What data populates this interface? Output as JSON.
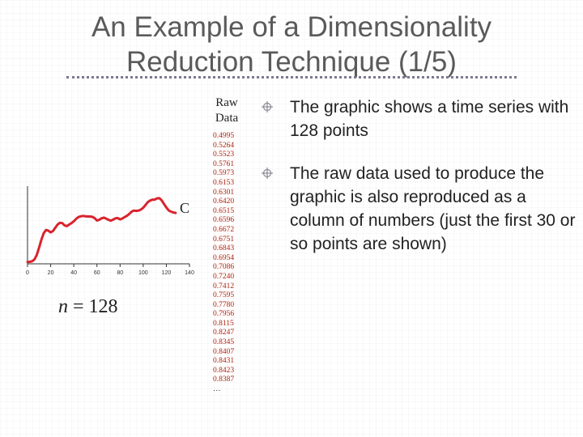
{
  "title": {
    "line1": "An Example of a Dimensionality",
    "line2": "Reduction Technique (1/5)"
  },
  "raw_data": {
    "label_line1": "Raw",
    "label_line2": "Data",
    "values": [
      "0.4995",
      "0.5264",
      "0.5523",
      "0.5761",
      "0.5973",
      "0.6153",
      "0.6301",
      "0.6420",
      "0.6515",
      "0.6596",
      "0.6672",
      "0.6751",
      "0.6843",
      "0.6954",
      "0.7086",
      "0.7240",
      "0.7412",
      "0.7595",
      "0.7780",
      "0.7956",
      "0.8115",
      "0.8247",
      "0.8345",
      "0.8407",
      "0.8431",
      "0.8423",
      "0.8387"
    ],
    "ellipsis": "…"
  },
  "chart_label": "C",
  "n_label": {
    "variable": "n",
    "value": "= 128"
  },
  "bullets": [
    {
      "text": "The graphic shows a time series with 128 points",
      "icon": "crosshair-bullet-icon"
    },
    {
      "text": "The raw data used to produce the graphic is also reproduced as a column of numbers (just the first 30 or so points are shown)",
      "icon": "crosshair-bullet-icon"
    }
  ],
  "chart_data": {
    "type": "line",
    "x_ticks": [
      0,
      20,
      40,
      60,
      80,
      100,
      120,
      140
    ],
    "xlim": [
      0,
      140
    ],
    "ylim": [
      -1.6,
      2.6
    ],
    "series": [
      {
        "color": "#d9232d",
        "x": [
          0,
          2,
          4,
          6,
          8,
          10,
          12,
          14,
          16,
          18,
          20,
          22,
          24,
          26,
          28,
          30,
          32,
          34,
          36,
          38,
          40,
          42,
          44,
          46,
          48,
          50,
          52,
          54,
          56,
          58,
          60,
          62,
          64,
          66,
          68,
          70,
          72,
          74,
          76,
          78,
          80,
          82,
          84,
          86,
          88,
          90,
          92,
          94,
          96,
          98,
          100,
          102,
          104,
          106,
          108,
          110,
          112,
          114,
          116,
          118,
          120,
          122,
          124,
          126,
          128
        ],
        "y": [
          -1.5,
          -1.49,
          -1.46,
          -1.36,
          -1.12,
          -0.72,
          -0.3,
          0.06,
          0.23,
          0.19,
          0.1,
          0.17,
          0.35,
          0.52,
          0.62,
          0.6,
          0.48,
          0.44,
          0.52,
          0.6,
          0.7,
          0.83,
          0.93,
          0.97,
          0.99,
          0.97,
          0.96,
          0.96,
          0.94,
          0.87,
          0.74,
          0.78,
          0.86,
          0.9,
          0.84,
          0.78,
          0.73,
          0.79,
          0.86,
          0.87,
          0.8,
          0.85,
          0.93,
          1.0,
          1.1,
          1.22,
          1.28,
          1.26,
          1.28,
          1.33,
          1.43,
          1.58,
          1.74,
          1.82,
          1.87,
          1.87,
          1.94,
          1.95,
          1.83,
          1.63,
          1.45,
          1.29,
          1.22,
          1.18,
          1.15
        ]
      }
    ]
  },
  "colors": {
    "title": "#5a5a5a",
    "series": "#d9232d",
    "raw_values": "#b0220f"
  }
}
